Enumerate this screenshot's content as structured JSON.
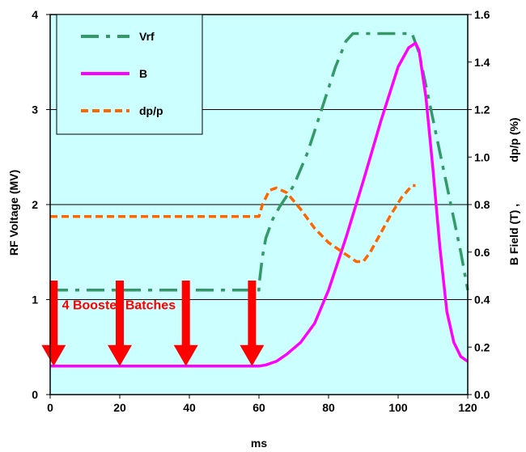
{
  "chart_data": {
    "type": "line",
    "xlabel": "ms",
    "ylabel_left": "RF Voltage (MV)",
    "ylabel_right_1": "B Field (T) ,",
    "ylabel_right_2": "dp/p (%)",
    "xlim": [
      0,
      120
    ],
    "ylim_left": [
      0,
      4
    ],
    "ylim_right": [
      0,
      1.6
    ],
    "x_ticks": [
      0,
      20,
      40,
      60,
      80,
      100,
      120
    ],
    "y_left_ticks": [
      0,
      1,
      2,
      3,
      4
    ],
    "y_right_ticks": [
      "0.0",
      "0.2",
      "0.4",
      "0.6",
      "0.8",
      "1.0",
      "1.2",
      "1.4",
      "1.6"
    ],
    "plot_background": "#ccffff",
    "grid": "horizontal gridlines at left-axis integer values",
    "legend_placement": "top-left",
    "series": [
      {
        "name": "Vrf",
        "axis": "left",
        "color": "#339966",
        "style": "dash-dot",
        "x": [
          0,
          60,
          60,
          61,
          62,
          64,
          66,
          70,
          74,
          78,
          82,
          85,
          87,
          90,
          95,
          100,
          104,
          106,
          110,
          114,
          118,
          120
        ],
        "y": [
          1.1,
          1.1,
          1.15,
          1.45,
          1.65,
          1.85,
          1.98,
          2.2,
          2.55,
          3.0,
          3.45,
          3.72,
          3.8,
          3.8,
          3.8,
          3.8,
          3.8,
          3.6,
          2.9,
          2.2,
          1.5,
          1.1
        ]
      },
      {
        "name": "B",
        "axis": "right",
        "color": "#ff00ff",
        "style": "solid",
        "x": [
          0,
          60,
          62,
          65,
          68,
          72,
          76,
          80,
          85,
          90,
          95,
          100,
          103,
          105,
          106,
          108,
          110,
          112,
          114,
          116,
          118,
          120
        ],
        "y": [
          0.12,
          0.12,
          0.125,
          0.14,
          0.17,
          0.22,
          0.3,
          0.44,
          0.66,
          0.9,
          1.15,
          1.38,
          1.46,
          1.48,
          1.45,
          1.25,
          0.95,
          0.62,
          0.35,
          0.22,
          0.16,
          0.14
        ]
      },
      {
        "name": "dp/p",
        "axis": "right",
        "color": "#ff6600",
        "style": "dashed",
        "x": [
          0,
          60,
          61,
          63,
          65,
          68,
          72,
          76,
          80,
          84,
          88,
          90,
          92,
          95,
          98,
          101,
          104,
          105
        ],
        "y": [
          0.75,
          0.75,
          0.8,
          0.86,
          0.87,
          0.85,
          0.78,
          0.7,
          0.64,
          0.6,
          0.56,
          0.56,
          0.6,
          0.68,
          0.76,
          0.83,
          0.88,
          0.88
        ]
      }
    ],
    "annotation": {
      "text": "4  Booster Batches",
      "color": "#ff0000",
      "anchor_x": 2,
      "anchor_y_left": 1.0
    },
    "arrows": {
      "color": "#ff0000",
      "x": [
        1,
        20,
        39,
        58
      ],
      "from_y_left": 0.85,
      "to_y_left": 0.3
    }
  }
}
